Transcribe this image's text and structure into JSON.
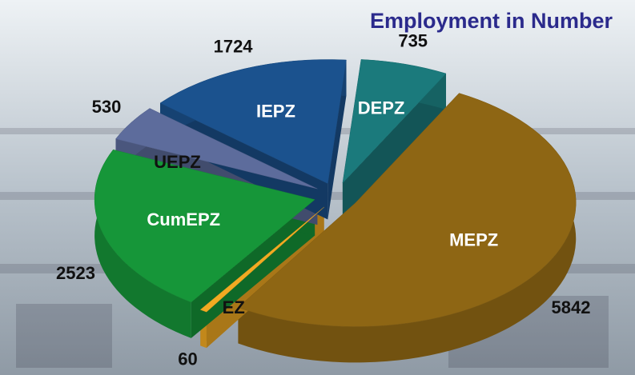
{
  "chart_data": {
    "type": "pie",
    "title": "Employment in Number",
    "categories": [
      "MEPZ",
      "EZ",
      "CumEPZ",
      "UEPZ",
      "IEPZ",
      "DEPZ"
    ],
    "values": [
      5842,
      60,
      2523,
      530,
      1724,
      735
    ],
    "colors": [
      "#8e6614",
      "#f2aa22",
      "#169639",
      "#5d6c9c",
      "#1b528e",
      "#1b7a7c"
    ]
  }
}
